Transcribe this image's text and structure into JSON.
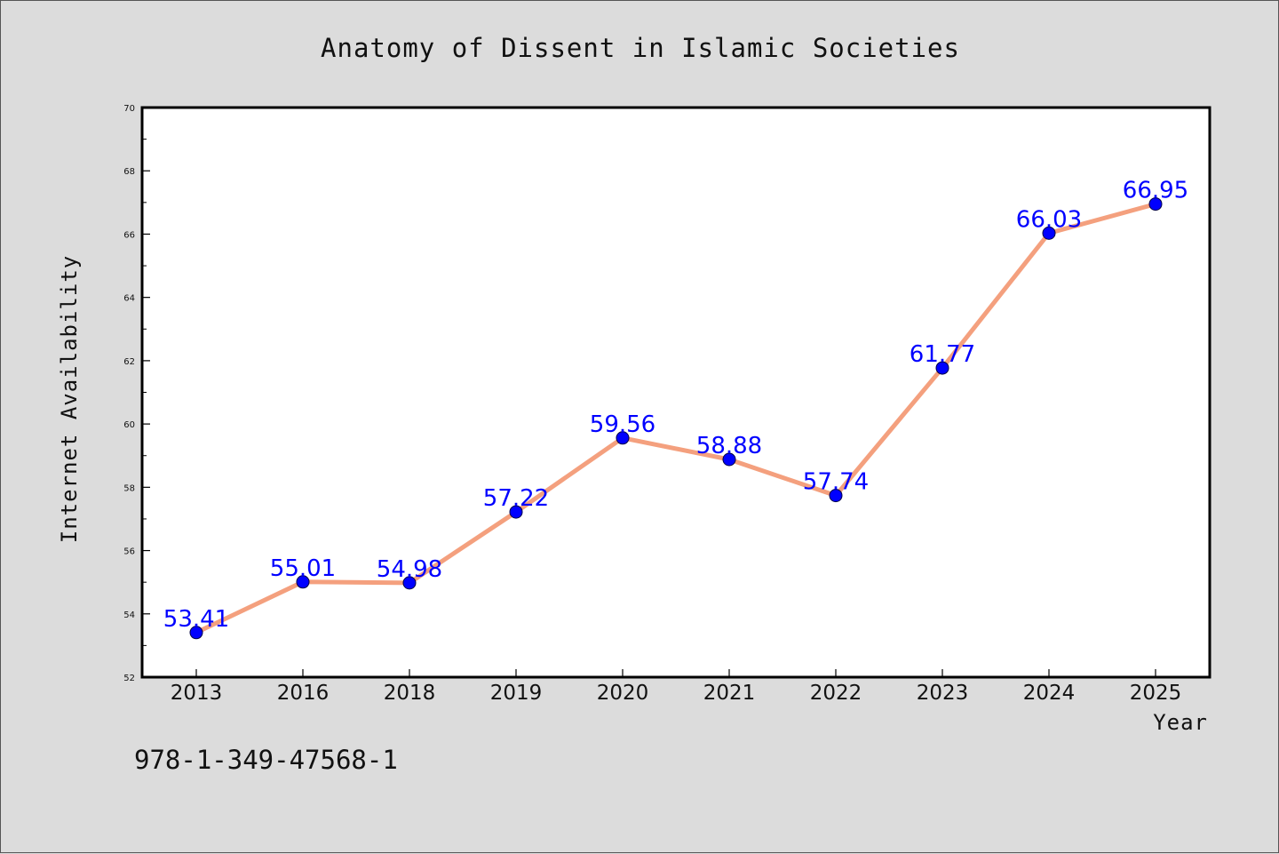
{
  "chart_data": {
    "type": "line",
    "title": "Anatomy of Dissent in Islamic Societies",
    "xlabel": "Year",
    "ylabel": "Internet Availability",
    "categories": [
      "2013",
      "2016",
      "2018",
      "2019",
      "2020",
      "2021",
      "2022",
      "2023",
      "2024",
      "2025"
    ],
    "series": [
      {
        "values": [
          53.41,
          55.01,
          54.98,
          57.22,
          59.56,
          58.88,
          57.74,
          61.77,
          66.03,
          66.95
        ],
        "data_labels": [
          "53.41",
          "55.01",
          "54.98",
          "57.22",
          "59.56",
          "58.88",
          "57.74",
          "61.77",
          "66.03",
          "66.95"
        ],
        "line_color": "#f4a07e",
        "marker_color": "#0000ff"
      }
    ],
    "ylim": [
      52,
      70
    ],
    "yticks": [
      52,
      54,
      56,
      58,
      60,
      62,
      64,
      66,
      68,
      70
    ],
    "grid": false,
    "legend": "none"
  },
  "footer": {
    "isbn": "978-1-349-47568-1"
  },
  "colors": {
    "background": "#dcdcdc",
    "plot_background": "#ffffff",
    "data_label": "#0000ff"
  }
}
